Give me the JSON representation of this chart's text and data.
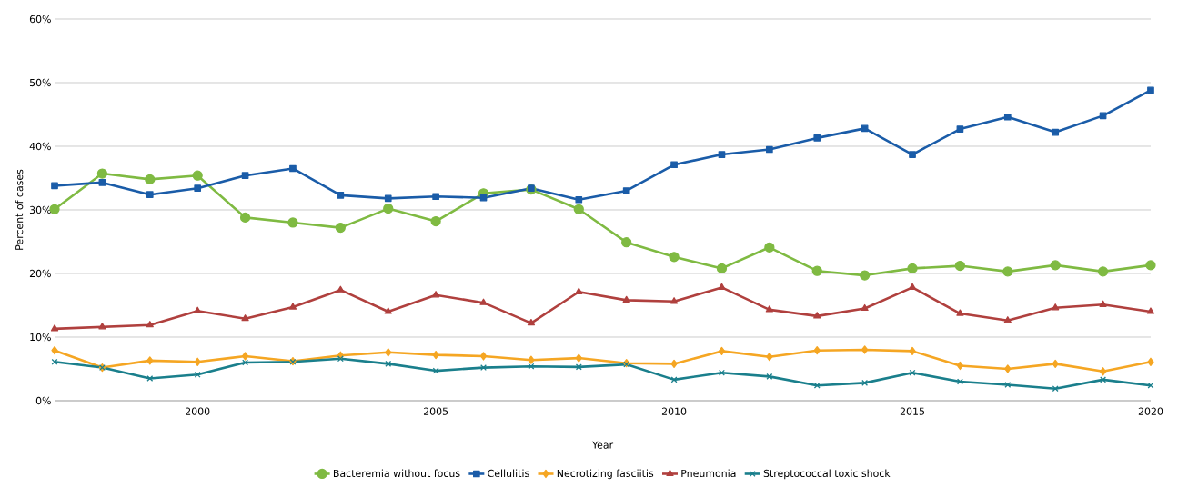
{
  "chart_data": {
    "type": "line",
    "xlabel": "Year",
    "ylabel": "Percent of cases",
    "x": [
      1997,
      1998,
      1999,
      2000,
      2001,
      2002,
      2003,
      2004,
      2005,
      2006,
      2007,
      2008,
      2009,
      2010,
      2011,
      2012,
      2013,
      2014,
      2015,
      2016,
      2017,
      2018,
      2019,
      2020
    ],
    "series": [
      {
        "name": "Bacteremia without focus",
        "color": "#7fba42",
        "marker": "circle",
        "values": [
          30.1,
          35.7,
          34.8,
          35.4,
          28.8,
          28.0,
          27.2,
          30.2,
          28.2,
          32.6,
          33.2,
          30.1,
          24.9,
          22.6,
          20.8,
          24.1,
          20.4,
          19.7,
          20.8,
          21.2,
          20.3,
          21.3,
          20.3,
          21.3
        ]
      },
      {
        "name": "Cellulitis",
        "color": "#1a5ca8",
        "marker": "square",
        "values": [
          33.8,
          34.3,
          32.4,
          33.4,
          35.4,
          36.5,
          32.3,
          31.8,
          32.1,
          31.9,
          33.4,
          31.6,
          33.0,
          37.1,
          38.7,
          39.5,
          41.3,
          42.8,
          38.7,
          42.7,
          44.6,
          42.2,
          44.8,
          48.8
        ]
      },
      {
        "name": "Necrotizing fasciitis",
        "color": "#f5a623",
        "marker": "diamond",
        "values": [
          7.9,
          5.2,
          6.3,
          6.1,
          7.0,
          6.2,
          7.1,
          7.6,
          7.2,
          7.0,
          6.4,
          6.7,
          5.9,
          5.8,
          7.8,
          6.9,
          7.9,
          8.0,
          7.8,
          5.5,
          5.0,
          5.8,
          4.6,
          6.1
        ]
      },
      {
        "name": "Pneumonia",
        "color": "#b0403e",
        "marker": "triangle",
        "values": [
          11.3,
          11.6,
          11.9,
          14.1,
          12.9,
          14.7,
          17.4,
          14.0,
          16.6,
          15.4,
          12.2,
          17.1,
          15.8,
          15.6,
          17.8,
          14.3,
          13.3,
          14.5,
          17.8,
          13.7,
          12.6,
          14.6,
          15.1,
          14.0
        ]
      },
      {
        "name": "Streptococcal toxic shock",
        "color": "#1a7f8c",
        "marker": "cross",
        "values": [
          6.1,
          5.2,
          3.5,
          4.1,
          6.0,
          6.1,
          6.6,
          5.8,
          4.7,
          5.2,
          5.4,
          5.3,
          5.7,
          3.3,
          4.4,
          3.8,
          2.4,
          2.8,
          4.4,
          3.0,
          2.5,
          1.9,
          3.3,
          2.4
        ]
      }
    ],
    "xlim": [
      1997,
      2020
    ],
    "xticks": [
      2000,
      2005,
      2010,
      2015,
      2020
    ],
    "ylim": [
      0,
      60
    ],
    "yticks": [
      {
        "value": 0,
        "label": "0%"
      },
      {
        "value": 10,
        "label": "10%"
      },
      {
        "value": 20,
        "label": "20%"
      },
      {
        "value": 30,
        "label": "30%"
      },
      {
        "value": 40,
        "label": "40%"
      },
      {
        "value": 50,
        "label": "50%"
      },
      {
        "value": 60,
        "label": "60%"
      }
    ],
    "grid": "y",
    "legend": "bottom"
  }
}
